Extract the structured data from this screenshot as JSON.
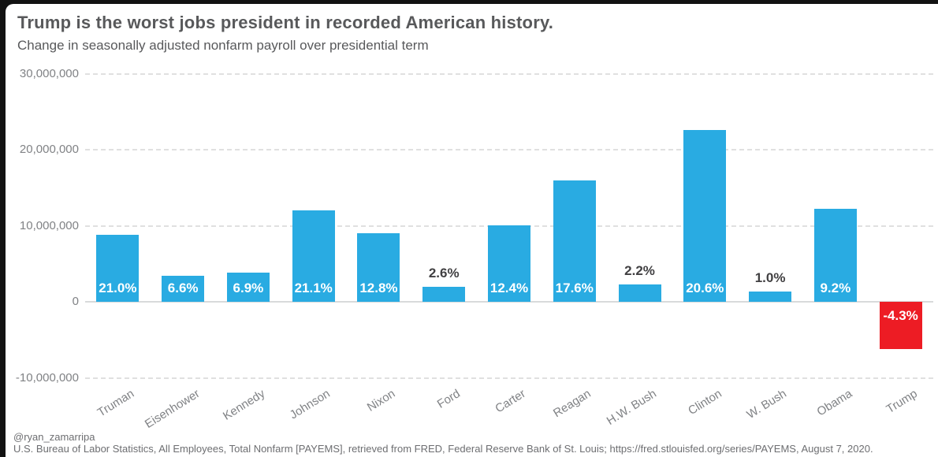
{
  "page": {
    "background_color": "#121212",
    "card_background_color": "#ffffff"
  },
  "header": {
    "title": "Trump is the worst jobs president in recorded American history.",
    "subtitle": "Change in seasonally adjusted nonfarm payroll over presidential term"
  },
  "footer": {
    "handle": "@ryan_zamarripa",
    "source": "U.S. Bureau of Labor Statistics, All Employees, Total Nonfarm [PAYEMS], retrieved from FRED, Federal Reserve Bank of St. Louis; https://fred.stlouisfed.org/series/PAYEMS, August 7, 2020."
  },
  "chart_data": {
    "type": "bar",
    "title": "Trump is the worst jobs president in recorded American history.",
    "subtitle": "Change in seasonally adjusted nonfarm payroll over presidential term",
    "categories": [
      "Truman",
      "Eisenhower",
      "Kennedy",
      "Johnson",
      "Nixon",
      "Ford",
      "Carter",
      "Reagan",
      "H.W. Bush",
      "Clinton",
      "W. Bush",
      "Obama",
      "Trump"
    ],
    "values_millions": [
      8.8,
      3.4,
      3.8,
      12.0,
      9.0,
      2.0,
      10.1,
      16.0,
      2.3,
      22.6,
      1.3,
      12.2,
      -6.2
    ],
    "bar_labels": [
      "21.0%",
      "6.6%",
      "6.9%",
      "21.1%",
      "12.8%",
      "2.6%",
      "12.4%",
      "17.6%",
      "2.2%",
      "20.6%",
      "1.0%",
      "9.2%",
      "-4.3%"
    ],
    "bar_label_positions": [
      "inside-bottom",
      "inside-bottom",
      "inside-bottom",
      "inside-bottom",
      "inside-bottom",
      "above",
      "inside-bottom",
      "inside-bottom",
      "above",
      "inside-bottom",
      "above",
      "inside-bottom",
      "inside-top"
    ],
    "y_ticks": [
      {
        "value": 30,
        "label": "30,000,000"
      },
      {
        "value": 20,
        "label": "20,000,000"
      },
      {
        "value": 10,
        "label": "10,000,000"
      },
      {
        "value": 0,
        "label": "0"
      },
      {
        "value": -10,
        "label": "-10,000,000"
      }
    ],
    "ylim_millions": [
      -10,
      30
    ],
    "xlabel": "",
    "ylabel": "",
    "grid": "horizontal-dashed",
    "legend": "none",
    "positive_bar_color": "#29abe2",
    "negative_bar_color": "#ed1c24",
    "inside_label_color": "#ffffff",
    "outside_label_color": "#414042",
    "axis_label_color": "#808285",
    "gridline_color": "#e0e0e0"
  }
}
